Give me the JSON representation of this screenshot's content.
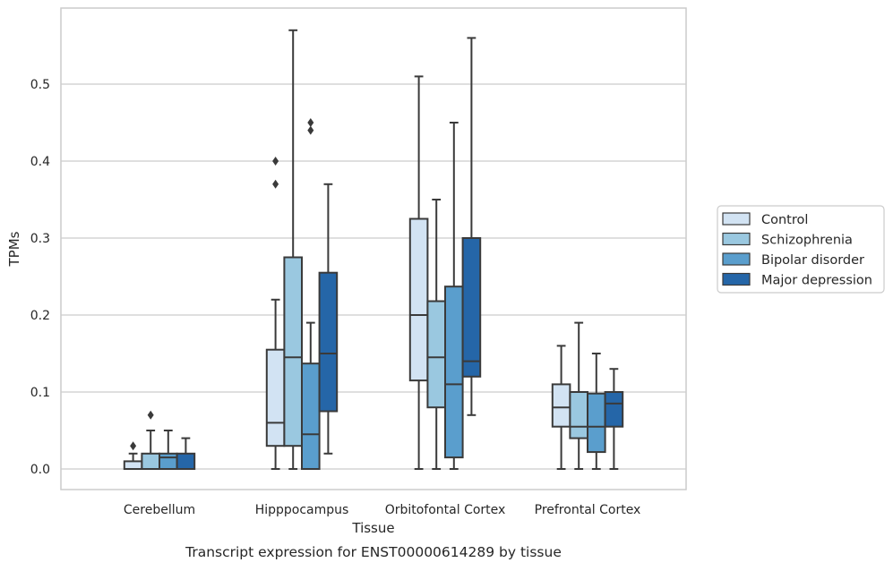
{
  "chart_data": {
    "type": "boxplot",
    "caption": "Transcript expression for ENST00000614289 by tissue",
    "xlabel": "Tissue",
    "ylabel": "TPMs",
    "ylim": [
      -0.028,
      0.6
    ],
    "yticks": [
      0.0,
      0.1,
      0.2,
      0.3,
      0.4,
      0.5
    ],
    "ytick_labels": [
      "0.0",
      "0.1",
      "0.2",
      "0.3",
      "0.4",
      "0.5"
    ],
    "grid": "horizontal",
    "legend_position": "right",
    "categories": [
      "Cerebellum",
      "Hipppocampus",
      "Orbitofontal Cortex",
      "Prefrontal Cortex"
    ],
    "series": [
      {
        "name": "Control",
        "color": "#d2e3f3",
        "boxes": [
          {
            "min": 0.0,
            "q1": 0.0,
            "median": 0.0,
            "q3": 0.01,
            "max": 0.02,
            "outliers": [
              0.03
            ]
          },
          {
            "min": 0.0,
            "q1": 0.03,
            "median": 0.06,
            "q3": 0.155,
            "max": 0.22,
            "outliers": [
              0.37,
              0.4
            ]
          },
          {
            "min": 0.0,
            "q1": 0.115,
            "median": 0.2,
            "q3": 0.325,
            "max": 0.51,
            "outliers": []
          },
          {
            "min": 0.0,
            "q1": 0.055,
            "median": 0.08,
            "q3": 0.11,
            "max": 0.16,
            "outliers": []
          }
        ]
      },
      {
        "name": "Schizophrenia",
        "color": "#9ac8e0",
        "boxes": [
          {
            "min": 0.0,
            "q1": 0.0,
            "median": 0.0,
            "q3": 0.02,
            "max": 0.05,
            "outliers": [
              0.07
            ]
          },
          {
            "min": 0.0,
            "q1": 0.03,
            "median": 0.145,
            "q3": 0.275,
            "max": 0.57,
            "outliers": []
          },
          {
            "min": 0.0,
            "q1": 0.08,
            "median": 0.145,
            "q3": 0.218,
            "max": 0.35,
            "outliers": []
          },
          {
            "min": 0.0,
            "q1": 0.04,
            "median": 0.055,
            "q3": 0.1,
            "max": 0.19,
            "outliers": []
          }
        ]
      },
      {
        "name": "Bipolar disorder",
        "color": "#5a9ecd",
        "boxes": [
          {
            "min": 0.0,
            "q1": 0.0,
            "median": 0.015,
            "q3": 0.02,
            "max": 0.05,
            "outliers": []
          },
          {
            "min": 0.0,
            "q1": 0.0,
            "median": 0.045,
            "q3": 0.137,
            "max": 0.19,
            "outliers": [
              0.44,
              0.45
            ]
          },
          {
            "min": 0.0,
            "q1": 0.015,
            "median": 0.11,
            "q3": 0.237,
            "max": 0.45,
            "outliers": []
          },
          {
            "min": 0.0,
            "q1": 0.022,
            "median": 0.055,
            "q3": 0.098,
            "max": 0.15,
            "outliers": []
          }
        ]
      },
      {
        "name": "Major depression",
        "color": "#2566a8",
        "boxes": [
          {
            "min": 0.0,
            "q1": 0.0,
            "median": 0.0,
            "q3": 0.02,
            "max": 0.04,
            "outliers": []
          },
          {
            "min": 0.02,
            "q1": 0.075,
            "median": 0.15,
            "q3": 0.255,
            "max": 0.37,
            "outliers": []
          },
          {
            "min": 0.07,
            "q1": 0.12,
            "median": 0.14,
            "q3": 0.3,
            "max": 0.56,
            "outliers": []
          },
          {
            "min": 0.0,
            "q1": 0.055,
            "median": 0.085,
            "q3": 0.1,
            "max": 0.13,
            "outliers": []
          }
        ]
      }
    ]
  }
}
